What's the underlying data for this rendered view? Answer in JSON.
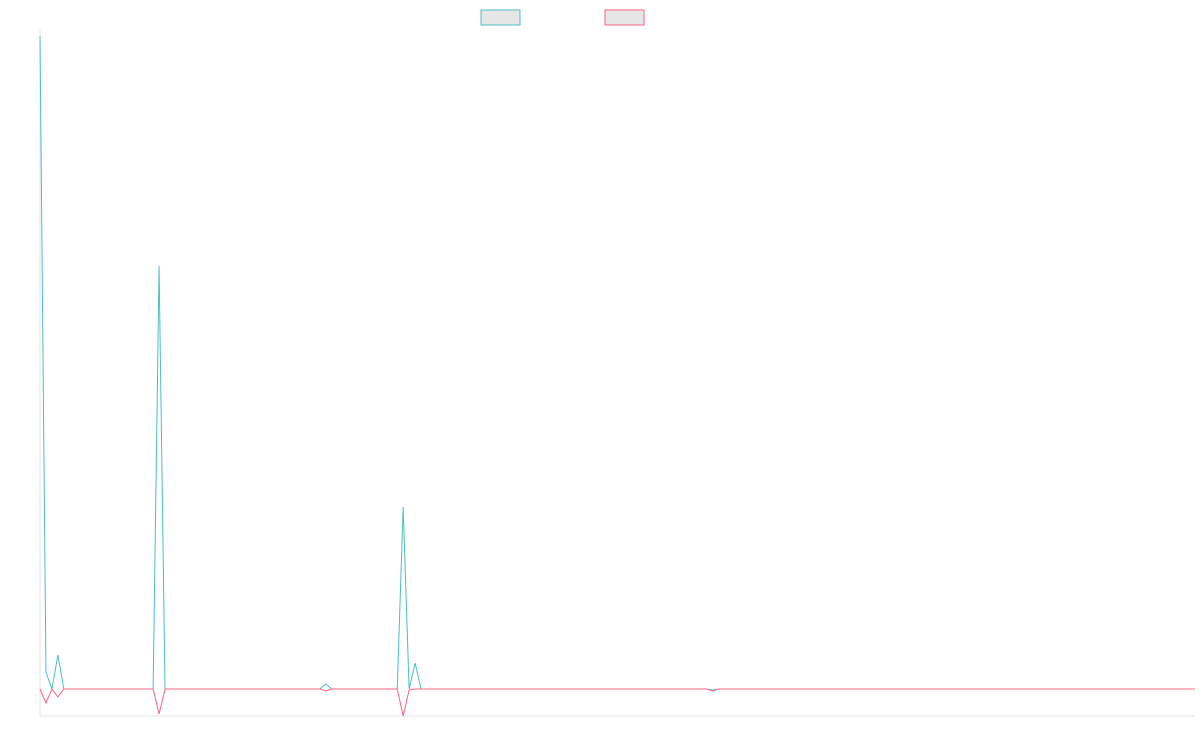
{
  "chart_data": {
    "type": "line",
    "x": [
      0,
      1,
      2,
      3,
      4,
      19,
      20,
      21,
      47,
      48,
      49,
      60,
      61,
      62,
      63,
      64,
      112,
      113,
      114,
      194
    ],
    "series": [
      {
        "color": "#4bc0c0",
        "values": [
          653,
          17,
          0,
          34,
          0,
          0,
          423,
          0,
          0,
          5,
          0,
          0,
          182,
          0,
          26,
          0,
          0,
          -1,
          0,
          0
        ]
      },
      {
        "color": "#ff6384",
        "values": [
          0,
          -14,
          0,
          -8,
          0,
          0,
          -25,
          0,
          0,
          -2,
          0,
          0,
          -27,
          -1,
          0,
          0,
          0,
          -2,
          0,
          0
        ]
      }
    ],
    "xlim": [
      0,
      194
    ],
    "ylim": [
      -27,
      653
    ],
    "legend": "top"
  }
}
